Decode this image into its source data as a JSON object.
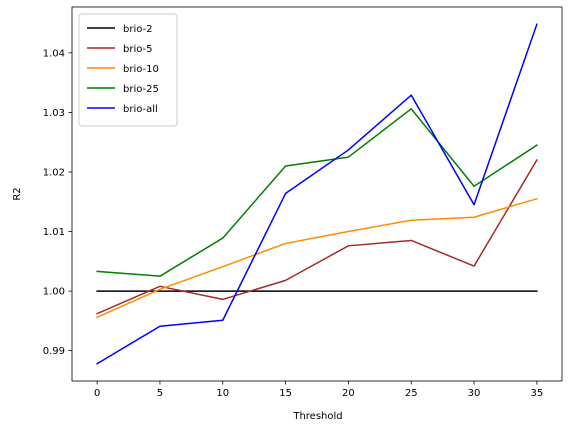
{
  "chart_data": {
    "type": "line",
    "xlabel": "Threshold",
    "ylabel": "R2",
    "x": [
      0,
      5,
      10,
      15,
      20,
      25,
      30,
      35
    ],
    "xlim": [
      -2.0,
      37.0
    ],
    "ylim": [
      0.9849,
      1.0477
    ],
    "xticks": [
      0,
      5,
      10,
      15,
      20,
      25,
      30,
      35
    ],
    "yticks": [
      0.99,
      1.0,
      1.01,
      1.02,
      1.03,
      1.04
    ],
    "ytick_labels": [
      "0.99",
      "1.00",
      "1.01",
      "1.02",
      "1.03",
      "1.04"
    ],
    "grid": false,
    "legend_position": "top-left",
    "series": [
      {
        "name": "brio-2",
        "color": "#000000",
        "values": [
          1.0,
          1.0,
          1.0,
          1.0,
          1.0,
          1.0,
          1.0,
          1.0
        ]
      },
      {
        "name": "brio-5",
        "color": "#a52a2a",
        "values": [
          0.9962,
          1.0008,
          0.9986,
          1.0018,
          1.0076,
          1.0085,
          1.0042,
          1.022
        ]
      },
      {
        "name": "brio-10",
        "color": "#ff8c00",
        "values": [
          0.9956,
          1.0003,
          1.0041,
          1.008,
          1.01,
          1.0119,
          1.0124,
          1.0155
        ]
      },
      {
        "name": "brio-25",
        "color": "#008000",
        "values": [
          1.0033,
          1.0025,
          1.0089,
          1.021,
          1.0225,
          1.0306,
          1.0176,
          1.0245
        ]
      },
      {
        "name": "brio-all",
        "color": "#0000ff",
        "values": [
          0.9878,
          0.9941,
          0.9951,
          1.0164,
          1.0237,
          1.0329,
          1.0145,
          1.0448
        ]
      }
    ]
  }
}
